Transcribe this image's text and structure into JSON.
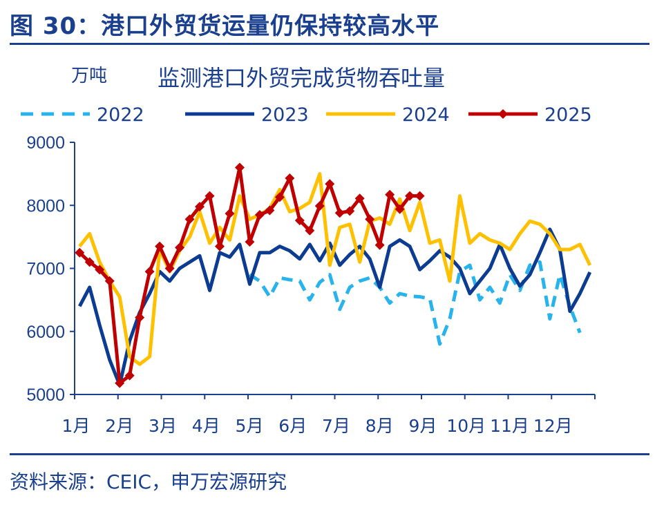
{
  "figure": {
    "title": "图 30：港口外贸货运量仍保持较高水平",
    "source": "资料来源：CEIC，申万宏源研究"
  },
  "colors": {
    "2022": "#29b3ec",
    "2023": "#0c3c91",
    "2024": "#ffc000",
    "2025": "#c00000",
    "axis": "#1a3f8f"
  },
  "chart_data": {
    "type": "line",
    "title": "监测港口外贸完成货物吞吐量",
    "ylabel": "万吨",
    "xlabel": "",
    "ylim": [
      5000,
      9000
    ],
    "yticks": [
      "5000",
      "6000",
      "7000",
      "8000",
      "9000"
    ],
    "x_months": [
      "1月",
      "2月",
      "3月",
      "4月",
      "5月",
      "6月",
      "7月",
      "8月",
      "9月",
      "10月",
      "11月",
      "12月"
    ],
    "x_unit": "week of year",
    "legend_position": "top",
    "grid": false,
    "series": [
      {
        "name": "2022",
        "style": "dashed",
        "x": [
          18,
          19,
          20,
          21,
          22,
          23,
          24,
          25,
          26,
          27,
          28,
          29,
          30,
          31,
          32,
          33,
          34,
          35,
          36,
          37,
          38,
          39,
          40,
          41,
          42,
          43,
          44,
          45,
          46,
          47,
          48,
          49,
          50,
          51
        ],
        "values": [
          6900,
          6800,
          6550,
          6850,
          6820,
          6800,
          6500,
          6780,
          6900,
          6350,
          6700,
          6800,
          6850,
          6700,
          6450,
          6600,
          6560,
          6550,
          6520,
          5800,
          6200,
          6950,
          7050,
          6500,
          6700,
          6450,
          6900,
          6650,
          7050,
          7100,
          6200,
          6900,
          6400,
          5980
        ]
      },
      {
        "name": "2023",
        "style": "solid",
        "x": [
          1,
          2,
          3,
          4,
          5,
          6,
          7,
          8,
          9,
          10,
          11,
          12,
          13,
          14,
          15,
          16,
          17,
          18,
          19,
          20,
          21,
          22,
          23,
          24,
          25,
          26,
          27,
          28,
          29,
          30,
          31,
          32,
          33,
          34,
          35,
          36,
          37,
          38,
          39,
          40,
          41,
          42,
          43,
          44,
          45,
          46,
          47,
          48,
          49,
          50,
          51,
          52
        ],
        "values": [
          6400,
          6700,
          6100,
          5550,
          5150,
          5850,
          6300,
          6600,
          6950,
          6800,
          7000,
          7100,
          7200,
          6650,
          7250,
          7180,
          7380,
          6750,
          7250,
          7250,
          7350,
          7280,
          7150,
          7380,
          7120,
          7400,
          7050,
          7220,
          7350,
          7150,
          6700,
          7350,
          7450,
          7350,
          6980,
          7120,
          7280,
          7180,
          7000,
          6600,
          6800,
          7000,
          7380,
          7000,
          6720,
          6900,
          7250,
          7620,
          7300,
          6320,
          6600,
          6940
        ]
      },
      {
        "name": "2024",
        "style": "solid",
        "x": [
          1,
          2,
          3,
          4,
          5,
          6,
          7,
          8,
          9,
          10,
          11,
          12,
          13,
          14,
          15,
          16,
          17,
          18,
          19,
          20,
          21,
          22,
          23,
          24,
          25,
          26,
          27,
          28,
          29,
          30,
          31,
          32,
          33,
          34,
          35,
          36,
          37,
          38,
          39,
          40,
          41,
          42,
          43,
          44,
          45,
          46,
          47,
          48,
          49,
          50,
          51,
          52
        ],
        "values": [
          7350,
          7550,
          7100,
          6800,
          6550,
          5600,
          5480,
          5600,
          7300,
          6950,
          7280,
          7500,
          7900,
          7400,
          7650,
          7450,
          8150,
          7780,
          7850,
          7950,
          8250,
          7900,
          7950,
          8050,
          8500,
          7050,
          7650,
          7700,
          7100,
          7750,
          7800,
          7700,
          8100,
          7600,
          8050,
          7400,
          7450,
          6800,
          8150,
          7400,
          7550,
          7450,
          7400,
          7300,
          7550,
          7750,
          7700,
          7550,
          7300,
          7300,
          7380,
          7050
        ]
      },
      {
        "name": "2025",
        "style": "solid-markers",
        "x": [
          1,
          2,
          3,
          4,
          5,
          6,
          7,
          8,
          9,
          10,
          11,
          12,
          13,
          14,
          15,
          16,
          17,
          18,
          19,
          20,
          21,
          22,
          23,
          24,
          25,
          26,
          27,
          28,
          29,
          30,
          31,
          32,
          33,
          34,
          35
        ],
        "values": [
          7250,
          7100,
          6980,
          6800,
          5180,
          5300,
          6220,
          6950,
          7350,
          7000,
          7330,
          7780,
          7980,
          8150,
          7350,
          7870,
          8600,
          7420,
          7850,
          7920,
          8130,
          8430,
          7760,
          7600,
          7990,
          8340,
          7880,
          7910,
          8110,
          7780,
          7370,
          8170,
          7940,
          8150,
          8150
        ]
      }
    ]
  }
}
